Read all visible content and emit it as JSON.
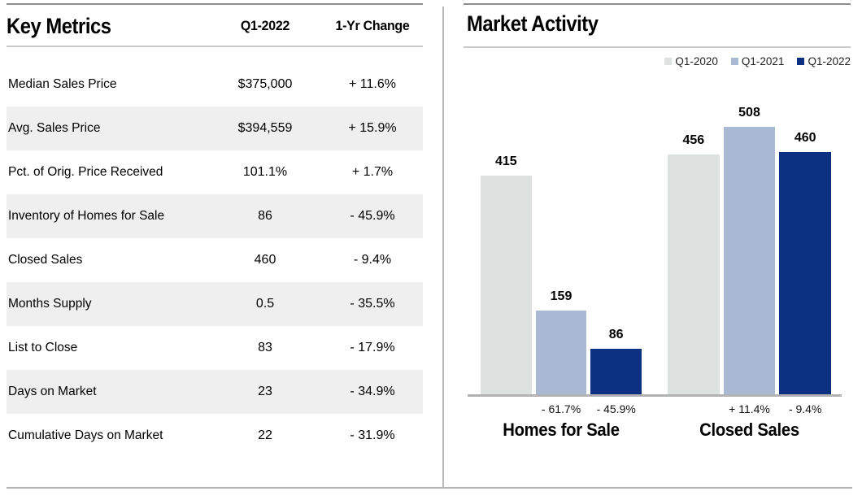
{
  "colors": {
    "series_q1_2020": "#dde1e0",
    "series_q1_2021": "#a9b9d3",
    "series_q1_2022": "#0d3182",
    "row_shade": "#efefef",
    "rule_dark": "#8e8e8e",
    "rule_light": "#c9c9c9",
    "axis_line": "#b2b2b2"
  },
  "chart_data": [
    {
      "type": "table",
      "title": "Key Metrics",
      "columns": [
        "",
        "Q1-2022",
        "1-Yr Change"
      ],
      "rows": [
        [
          "Median Sales Price",
          "$375,000",
          "+ 11.6%"
        ],
        [
          "Avg. Sales Price",
          "$394,559",
          "+ 15.9%"
        ],
        [
          "Pct. of Orig. Price Received",
          "101.1%",
          "+ 1.7%"
        ],
        [
          "Inventory of Homes for Sale",
          "86",
          "- 45.9%"
        ],
        [
          "Closed Sales",
          "460",
          "- 9.4%"
        ],
        [
          "Months Supply",
          "0.5",
          "- 35.5%"
        ],
        [
          "List to Close",
          "83",
          "- 17.9%"
        ],
        [
          "Days on Market",
          "23",
          "- 34.9%"
        ],
        [
          "Cumulative Days on Market",
          "22",
          "- 31.9%"
        ]
      ]
    },
    {
      "type": "bar",
      "title": "Market Activity",
      "categories": [
        "Homes for Sale",
        "Closed Sales"
      ],
      "series": [
        {
          "name": "Q1-2020",
          "color": "#dde1e0",
          "values": [
            415,
            456
          ],
          "changes": [
            null,
            null
          ]
        },
        {
          "name": "Q1-2021",
          "color": "#a9b9d3",
          "values": [
            159,
            508
          ],
          "changes": [
            "- 61.7%",
            "+ 11.4%"
          ]
        },
        {
          "name": "Q1-2022",
          "color": "#0d3182",
          "values": [
            86,
            460
          ],
          "changes": [
            "- 45.9%",
            "- 9.4%"
          ]
        }
      ],
      "value_labels": true,
      "legend_position": "top-right",
      "grid": false,
      "ylim": [
        0,
        508
      ]
    }
  ]
}
